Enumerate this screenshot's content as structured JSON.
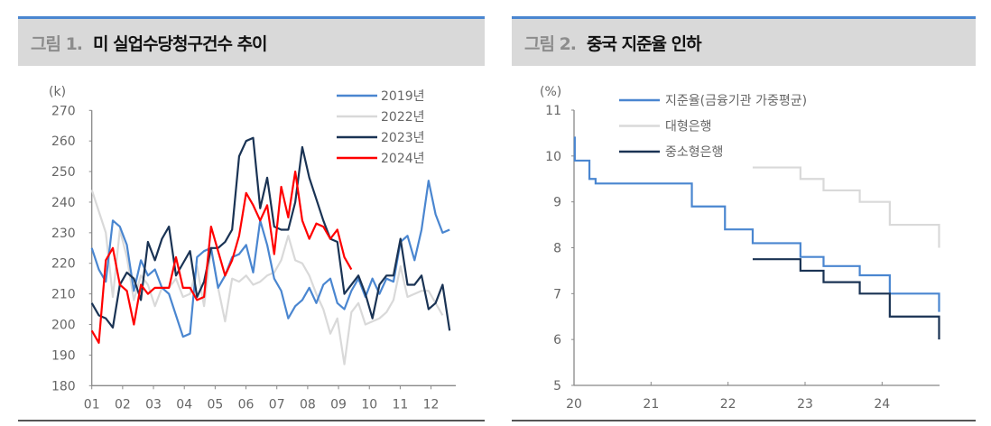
{
  "figures": [
    {
      "number": "그림 1.",
      "title": "미 실업수당청구건수 추이"
    },
    {
      "number": "그림 2.",
      "title": "중국 지준율 인하"
    }
  ],
  "chart_data": [
    {
      "type": "line",
      "unit": "(k)",
      "x_tick_labels": [
        "01",
        "02",
        "03",
        "04",
        "05",
        "06",
        "07",
        "08",
        "09",
        "10",
        "11",
        "12"
      ],
      "x_frequency": "weekly",
      "ylim": [
        180,
        270
      ],
      "y_ticks": [
        180,
        190,
        200,
        210,
        220,
        230,
        240,
        250,
        260,
        270
      ],
      "grid": false,
      "legend": "top-right",
      "series": [
        {
          "name": "2019년",
          "color": "#4a86d0",
          "values": [
            225,
            218,
            214,
            234,
            232,
            226,
            211,
            221,
            216,
            218,
            212,
            210,
            203,
            196,
            197,
            222,
            224,
            225,
            212,
            216,
            222,
            223,
            226,
            217,
            234,
            226,
            215,
            211,
            202,
            206,
            208,
            212,
            207,
            213,
            215,
            207,
            205,
            211,
            215,
            209,
            215,
            210,
            215,
            214,
            227,
            229,
            221,
            231,
            247,
            236,
            230,
            231
          ]
        },
        {
          "name": "2022년",
          "color": "#d9d9d9",
          "values": [
            244,
            237,
            230,
            209,
            231,
            222,
            208,
            216,
            213,
            206,
            212,
            212,
            215,
            209,
            210,
            219,
            206,
            225,
            212,
            201,
            215,
            214,
            216,
            213,
            214,
            216,
            217,
            221,
            229,
            221,
            220,
            216,
            210,
            205,
            197,
            202,
            187,
            204,
            207,
            200,
            201,
            202,
            204,
            208,
            219,
            209,
            210,
            211,
            211,
            207,
            203
          ]
        },
        {
          "name": "2023년",
          "color": "#1a3354",
          "values": [
            207,
            203,
            202,
            199,
            213,
            217,
            215,
            208,
            227,
            221,
            228,
            232,
            216,
            220,
            224,
            209,
            214,
            225,
            225,
            227,
            231,
            255,
            260,
            261,
            238,
            248,
            232,
            231,
            231,
            240,
            258,
            248,
            241,
            234,
            228,
            227,
            210,
            213,
            216,
            210,
            202,
            213,
            216,
            216,
            228,
            213,
            213,
            216,
            205,
            207,
            213,
            198
          ]
        },
        {
          "name": "2024년",
          "color": "#ff0000",
          "values": [
            198,
            194,
            221,
            225,
            213,
            211,
            200,
            213,
            210,
            212,
            212,
            212,
            222,
            212,
            212,
            208,
            209,
            232,
            224,
            216,
            221,
            229,
            243,
            239,
            234,
            239,
            223,
            245,
            235,
            250,
            234,
            228,
            233,
            232,
            228,
            231,
            222,
            218
          ]
        }
      ]
    },
    {
      "type": "line",
      "step": true,
      "unit": "(%)",
      "x_tick_labels": [
        "20",
        "21",
        "22",
        "23",
        "24"
      ],
      "xlim": [
        20,
        24.74
      ],
      "ylim": [
        5,
        11
      ],
      "y_ticks": [
        5,
        6,
        7,
        8,
        9,
        10,
        11
      ],
      "grid": false,
      "legend": "top",
      "series": [
        {
          "name": "지준율(금융기관 가중평균)",
          "color": "#4a86d0",
          "points": [
            [
              20.0,
              10.4
            ],
            [
              20.01,
              9.9
            ],
            [
              20.2,
              9.5
            ],
            [
              20.28,
              9.4
            ],
            [
              21.53,
              8.9
            ],
            [
              21.96,
              8.4
            ],
            [
              22.32,
              8.1
            ],
            [
              22.94,
              7.8
            ],
            [
              23.24,
              7.6
            ],
            [
              23.71,
              7.4
            ],
            [
              24.1,
              7.0
            ],
            [
              24.74,
              6.6
            ]
          ]
        },
        {
          "name": "대형은행",
          "color": "#d9d9d9",
          "points": [
            [
              22.32,
              9.75
            ],
            [
              22.94,
              9.5
            ],
            [
              23.24,
              9.25
            ],
            [
              23.71,
              9.0
            ],
            [
              24.1,
              8.5
            ],
            [
              24.74,
              8.0
            ]
          ]
        },
        {
          "name": "중소형은행",
          "color": "#1a3354",
          "points": [
            [
              22.32,
              7.75
            ],
            [
              22.94,
              7.5
            ],
            [
              23.24,
              7.25
            ],
            [
              23.71,
              7.0
            ],
            [
              24.1,
              6.5
            ],
            [
              24.74,
              6.0
            ]
          ]
        }
      ]
    }
  ]
}
